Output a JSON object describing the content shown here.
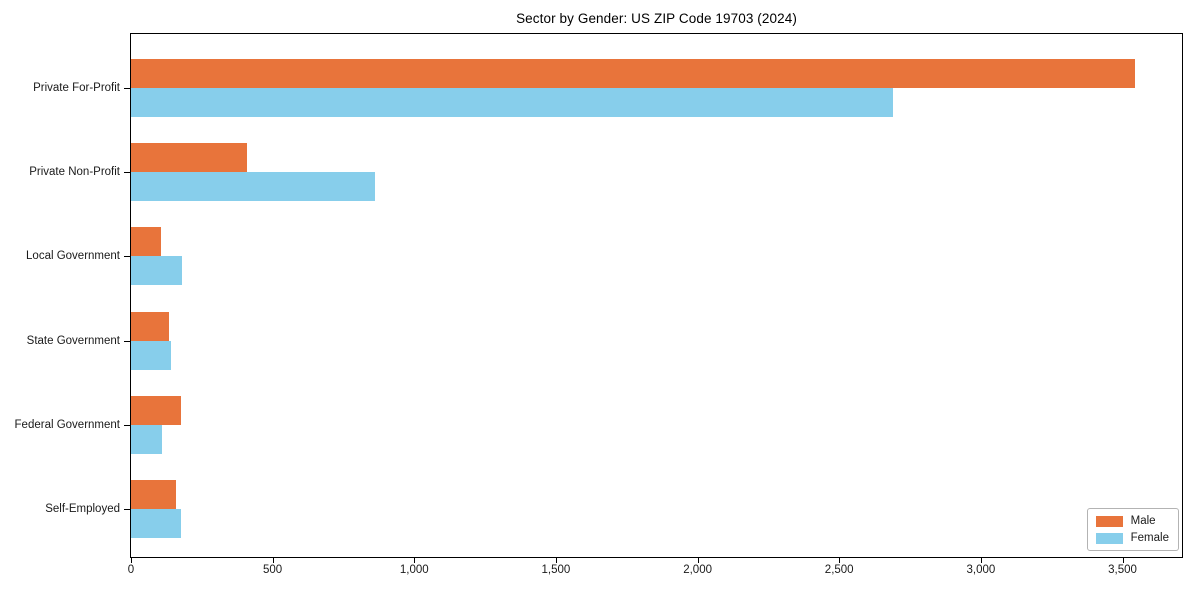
{
  "chart_data": {
    "type": "bar",
    "orientation": "horizontal",
    "title": "Sector by Gender: US ZIP Code 19703 (2024)",
    "xlabel": "",
    "ylabel": "",
    "categories": [
      "Private For-Profit",
      "Private Non-Profit",
      "Local Government",
      "State Government",
      "Federal Government",
      "Self-Employed"
    ],
    "series": [
      {
        "name": "Male",
        "color": "#E8743B",
        "values": [
          3545,
          410,
          105,
          135,
          175,
          160
        ]
      },
      {
        "name": "Female",
        "color": "#87CEEB",
        "values": [
          2690,
          860,
          180,
          140,
          110,
          175
        ]
      }
    ],
    "xlim": [
      0,
      3710
    ],
    "xticks": [
      0,
      500,
      1000,
      1500,
      2000,
      2500,
      3000,
      3500
    ],
    "xtick_labels": [
      "0",
      "500",
      "1,000",
      "1,500",
      "2,000",
      "2,500",
      "3,000",
      "3,500"
    ],
    "grid": false,
    "legend_position": "lower right",
    "axis_color": "#000000",
    "legend_border_color": "#B3B3B3",
    "background_color": "#FFFFFF"
  }
}
